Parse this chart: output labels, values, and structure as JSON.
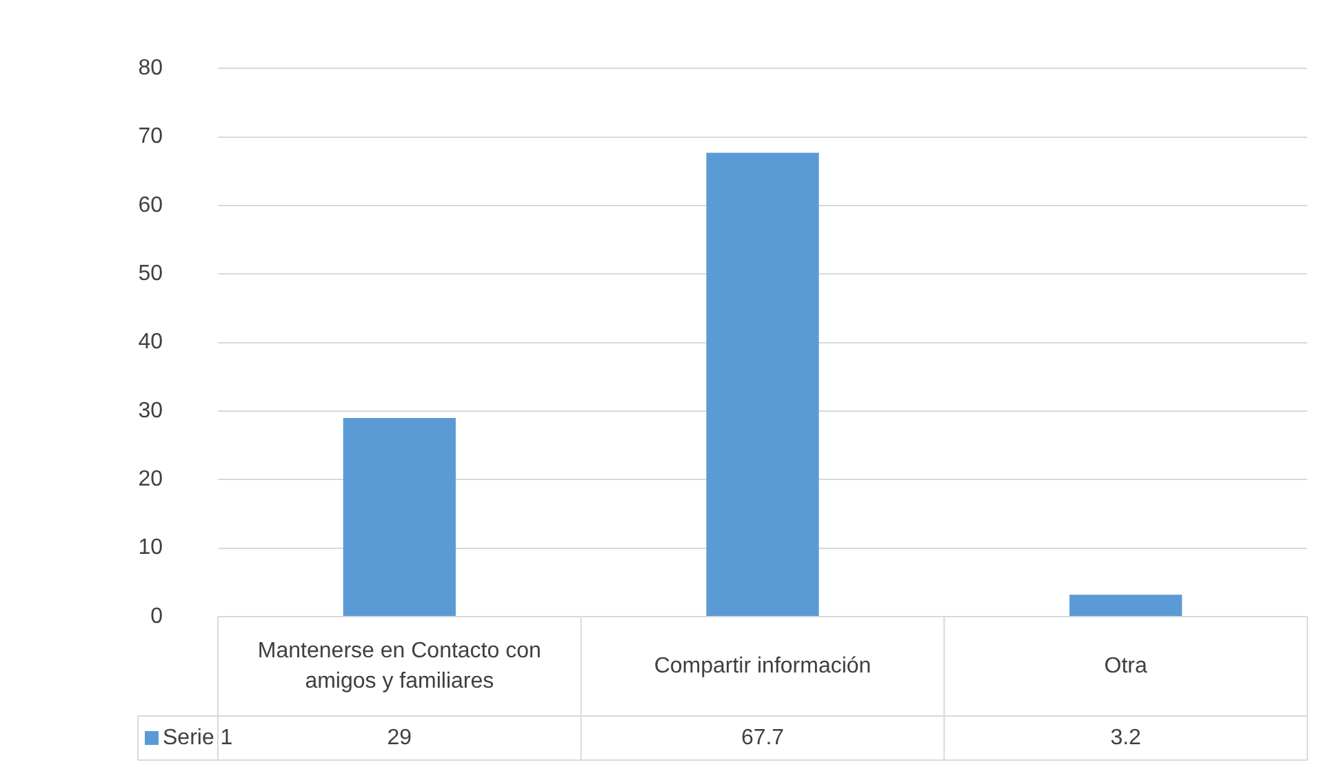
{
  "chart_data": {
    "type": "bar",
    "categories": [
      "Mantenerse en Contacto con amigos y familiares",
      "Compartir información",
      "Otra"
    ],
    "series": [
      {
        "name": "Serie 1",
        "color": "#5b9bd5",
        "values": [
          29,
          67.7,
          3.2
        ]
      }
    ],
    "ylim": [
      0,
      80
    ],
    "yticks": [
      0,
      10,
      20,
      30,
      40,
      50,
      60,
      70,
      80
    ],
    "grid": "y",
    "legend": "bottom",
    "data_labels": true
  }
}
